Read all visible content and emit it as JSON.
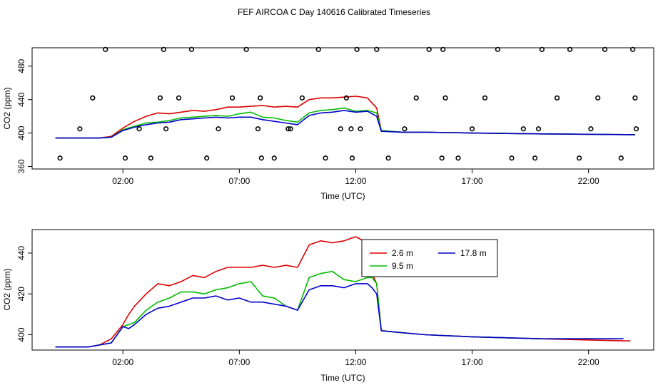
{
  "chart_data": [
    {
      "type": "line",
      "title": "FEF AIRCOA C  Day 140616  Calibrated Timeseries",
      "xlabel": "Time (UTC)",
      "ylabel": "CO2 (ppm)",
      "xlim": [
        -1.9,
        24.8
      ],
      "ylim": [
        357,
        502
      ],
      "x_ticks": [
        2,
        7,
        12,
        17,
        22
      ],
      "x_tick_labels": [
        "02:00",
        "07:00",
        "12:00",
        "17:00",
        "22:00"
      ],
      "y_ticks": [
        360,
        400,
        440,
        480
      ],
      "y_tick_labels": [
        "360",
        "400",
        "440",
        "480"
      ],
      "series_colors": [
        "#dd0000",
        "#00bb00",
        "#0000cc"
      ],
      "series": [
        {
          "x": [
            -0.9,
            1.0,
            1.5,
            2.0,
            2.5,
            3.0,
            3.5,
            4.0,
            4.5,
            5.0,
            5.5,
            6.0,
            6.5,
            7.0,
            7.5,
            8.0,
            8.5,
            9.0,
            9.5,
            10.0,
            10.5,
            11.0,
            11.5,
            12.0,
            12.5,
            12.9,
            13.1,
            14.0,
            15.0,
            17.0,
            20.0,
            24.0
          ],
          "values": [
            394,
            394,
            396,
            406,
            414,
            420,
            424,
            423,
            425,
            427,
            426,
            428,
            431,
            431,
            432,
            433,
            431,
            432,
            431,
            440,
            442,
            442,
            443,
            444,
            442,
            430,
            403,
            401,
            401,
            400,
            399,
            398
          ]
        },
        {
          "x": [
            -0.9,
            1.0,
            1.5,
            2.0,
            2.5,
            3.0,
            3.5,
            4.0,
            4.5,
            5.0,
            5.5,
            6.0,
            6.5,
            7.0,
            7.5,
            8.0,
            8.5,
            9.0,
            9.5,
            10.0,
            10.5,
            11.0,
            11.5,
            12.0,
            12.5,
            12.9,
            13.1,
            14.0,
            15.0,
            17.0,
            20.0,
            24.0
          ],
          "values": [
            394,
            394,
            395,
            404,
            408,
            412,
            413,
            415,
            418,
            419,
            420,
            421,
            420,
            423,
            425,
            419,
            418,
            415,
            413,
            424,
            427,
            428,
            430,
            426,
            427,
            424,
            403,
            401,
            401,
            400,
            399,
            398
          ]
        },
        {
          "x": [
            -0.9,
            1.0,
            1.5,
            2.0,
            2.5,
            3.0,
            3.5,
            4.0,
            4.5,
            5.0,
            5.5,
            6.0,
            6.5,
            7.0,
            7.5,
            8.0,
            8.5,
            9.0,
            9.5,
            10.0,
            10.5,
            11.0,
            11.5,
            12.0,
            12.5,
            12.9,
            13.1,
            14.0,
            15.0,
            17.0,
            20.0,
            24.0
          ],
          "values": [
            394,
            394,
            395,
            403,
            407,
            410,
            412,
            413,
            416,
            417,
            418,
            419,
            418,
            419,
            419,
            416,
            414,
            412,
            410,
            421,
            424,
            425,
            427,
            425,
            426,
            420,
            402,
            401,
            401,
            400,
            399,
            398
          ]
        }
      ],
      "markers": {
        "x": [
          -0.7,
          0.15,
          0.7,
          1.25,
          2.1,
          2.7,
          3.2,
          3.6,
          3.75,
          3.85,
          4.4,
          4.95,
          5.6,
          6.1,
          6.7,
          7.3,
          7.8,
          7.9,
          7.95,
          8.5,
          9.1,
          9.2,
          9.7,
          10.4,
          10.7,
          11.35,
          11.6,
          11.8,
          11.85,
          12.05,
          12.2,
          12.9,
          13.4,
          14.1,
          14.6,
          15.15,
          15.7,
          15.75,
          15.85,
          16.4,
          17.0,
          17.55,
          18.1,
          18.7,
          19.2,
          19.7,
          19.85,
          20.0,
          20.65,
          21.2,
          21.6,
          22.1,
          22.4,
          22.7,
          23.4,
          23.9,
          24.0,
          24.05
        ],
        "values": [
          370,
          405,
          442,
          500,
          370,
          405,
          370,
          442,
          500,
          405,
          442,
          500,
          370,
          405,
          442,
          500,
          405,
          442,
          370,
          370,
          405,
          405,
          442,
          500,
          370,
          405,
          442,
          405,
          370,
          500,
          405,
          500,
          370,
          405,
          442,
          500,
          370,
          500,
          442,
          370,
          405,
          442,
          500,
          370,
          405,
          370,
          405,
          500,
          442,
          500,
          370,
          405,
          442,
          500,
          370,
          500,
          442,
          405
        ]
      }
    },
    {
      "type": "line",
      "xlabel": "Time (UTC)",
      "ylabel": "CO2 (ppm)",
      "xlim": [
        -1.9,
        24.8
      ],
      "ylim": [
        392.5,
        451.5
      ],
      "x_ticks": [
        2,
        7,
        12,
        17,
        22
      ],
      "x_tick_labels": [
        "02:00",
        "07:00",
        "12:00",
        "17:00",
        "22:00"
      ],
      "y_ticks": [
        400,
        420,
        440
      ],
      "y_tick_labels": [
        "400",
        "420",
        "440"
      ],
      "legend": {
        "position": "top-right",
        "entries": [
          "2.6 m",
          "9.5 m",
          "17.8 m"
        ]
      },
      "series": [
        {
          "name": "2.6 m",
          "color": "#dd0000",
          "x": [
            -0.9,
            0.0,
            0.5,
            1.0,
            1.5,
            2.0,
            2.25,
            2.5,
            3.0,
            3.5,
            4.0,
            4.5,
            5.0,
            5.5,
            6.0,
            6.5,
            7.0,
            7.5,
            8.0,
            8.5,
            9.0,
            9.5,
            10.0,
            10.5,
            11.0,
            11.5,
            12.0,
            12.5,
            12.7,
            12.9,
            13.1,
            14.0,
            15.0,
            17.0,
            20.0,
            23.5,
            23.8
          ],
          "values": [
            394,
            394,
            394,
            395,
            398,
            405,
            410,
            414,
            420,
            425,
            424,
            426,
            429,
            428,
            431,
            433,
            433,
            433,
            434,
            433,
            434,
            433,
            444,
            446,
            445,
            446,
            448,
            445,
            430,
            425,
            402,
            401,
            400,
            399,
            398,
            397,
            397
          ]
        },
        {
          "name": "9.5 m",
          "color": "#00bb00",
          "x": [
            -0.9,
            0.0,
            0.5,
            1.0,
            1.5,
            2.0,
            2.25,
            2.5,
            3.0,
            3.5,
            4.0,
            4.5,
            5.0,
            5.5,
            6.0,
            6.5,
            7.0,
            7.5,
            8.0,
            8.5,
            9.0,
            9.5,
            10.0,
            10.5,
            11.0,
            11.5,
            12.0,
            12.5,
            12.7,
            12.9,
            13.1,
            14.0,
            15.0,
            17.0,
            20.0,
            23.5
          ],
          "values": [
            394,
            394,
            394,
            395,
            396,
            404,
            405,
            406,
            412,
            416,
            418,
            421,
            421,
            420,
            422,
            423,
            425,
            426,
            419,
            418,
            414,
            412,
            428,
            430,
            431,
            427,
            426,
            428,
            428,
            425,
            402,
            401,
            400,
            399,
            398,
            398
          ]
        },
        {
          "name": "17.8 m",
          "color": "#0000cc",
          "x": [
            -0.9,
            0.0,
            0.5,
            1.0,
            1.5,
            2.0,
            2.25,
            2.5,
            3.0,
            3.5,
            4.0,
            4.5,
            5.0,
            5.5,
            6.0,
            6.5,
            7.0,
            7.5,
            8.0,
            8.5,
            9.0,
            9.5,
            10.0,
            10.5,
            11.0,
            11.5,
            12.0,
            12.5,
            12.7,
            12.9,
            13.1,
            14.0,
            15.0,
            17.0,
            20.0,
            23.5
          ],
          "values": [
            394,
            394,
            394,
            395,
            396,
            404,
            403,
            405,
            410,
            413,
            414,
            416,
            418,
            418,
            419,
            417,
            418,
            416,
            416,
            415,
            414,
            412,
            422,
            424,
            424,
            423,
            425,
            425,
            423,
            420,
            402,
            401,
            400,
            399,
            398,
            398
          ]
        }
      ]
    }
  ]
}
